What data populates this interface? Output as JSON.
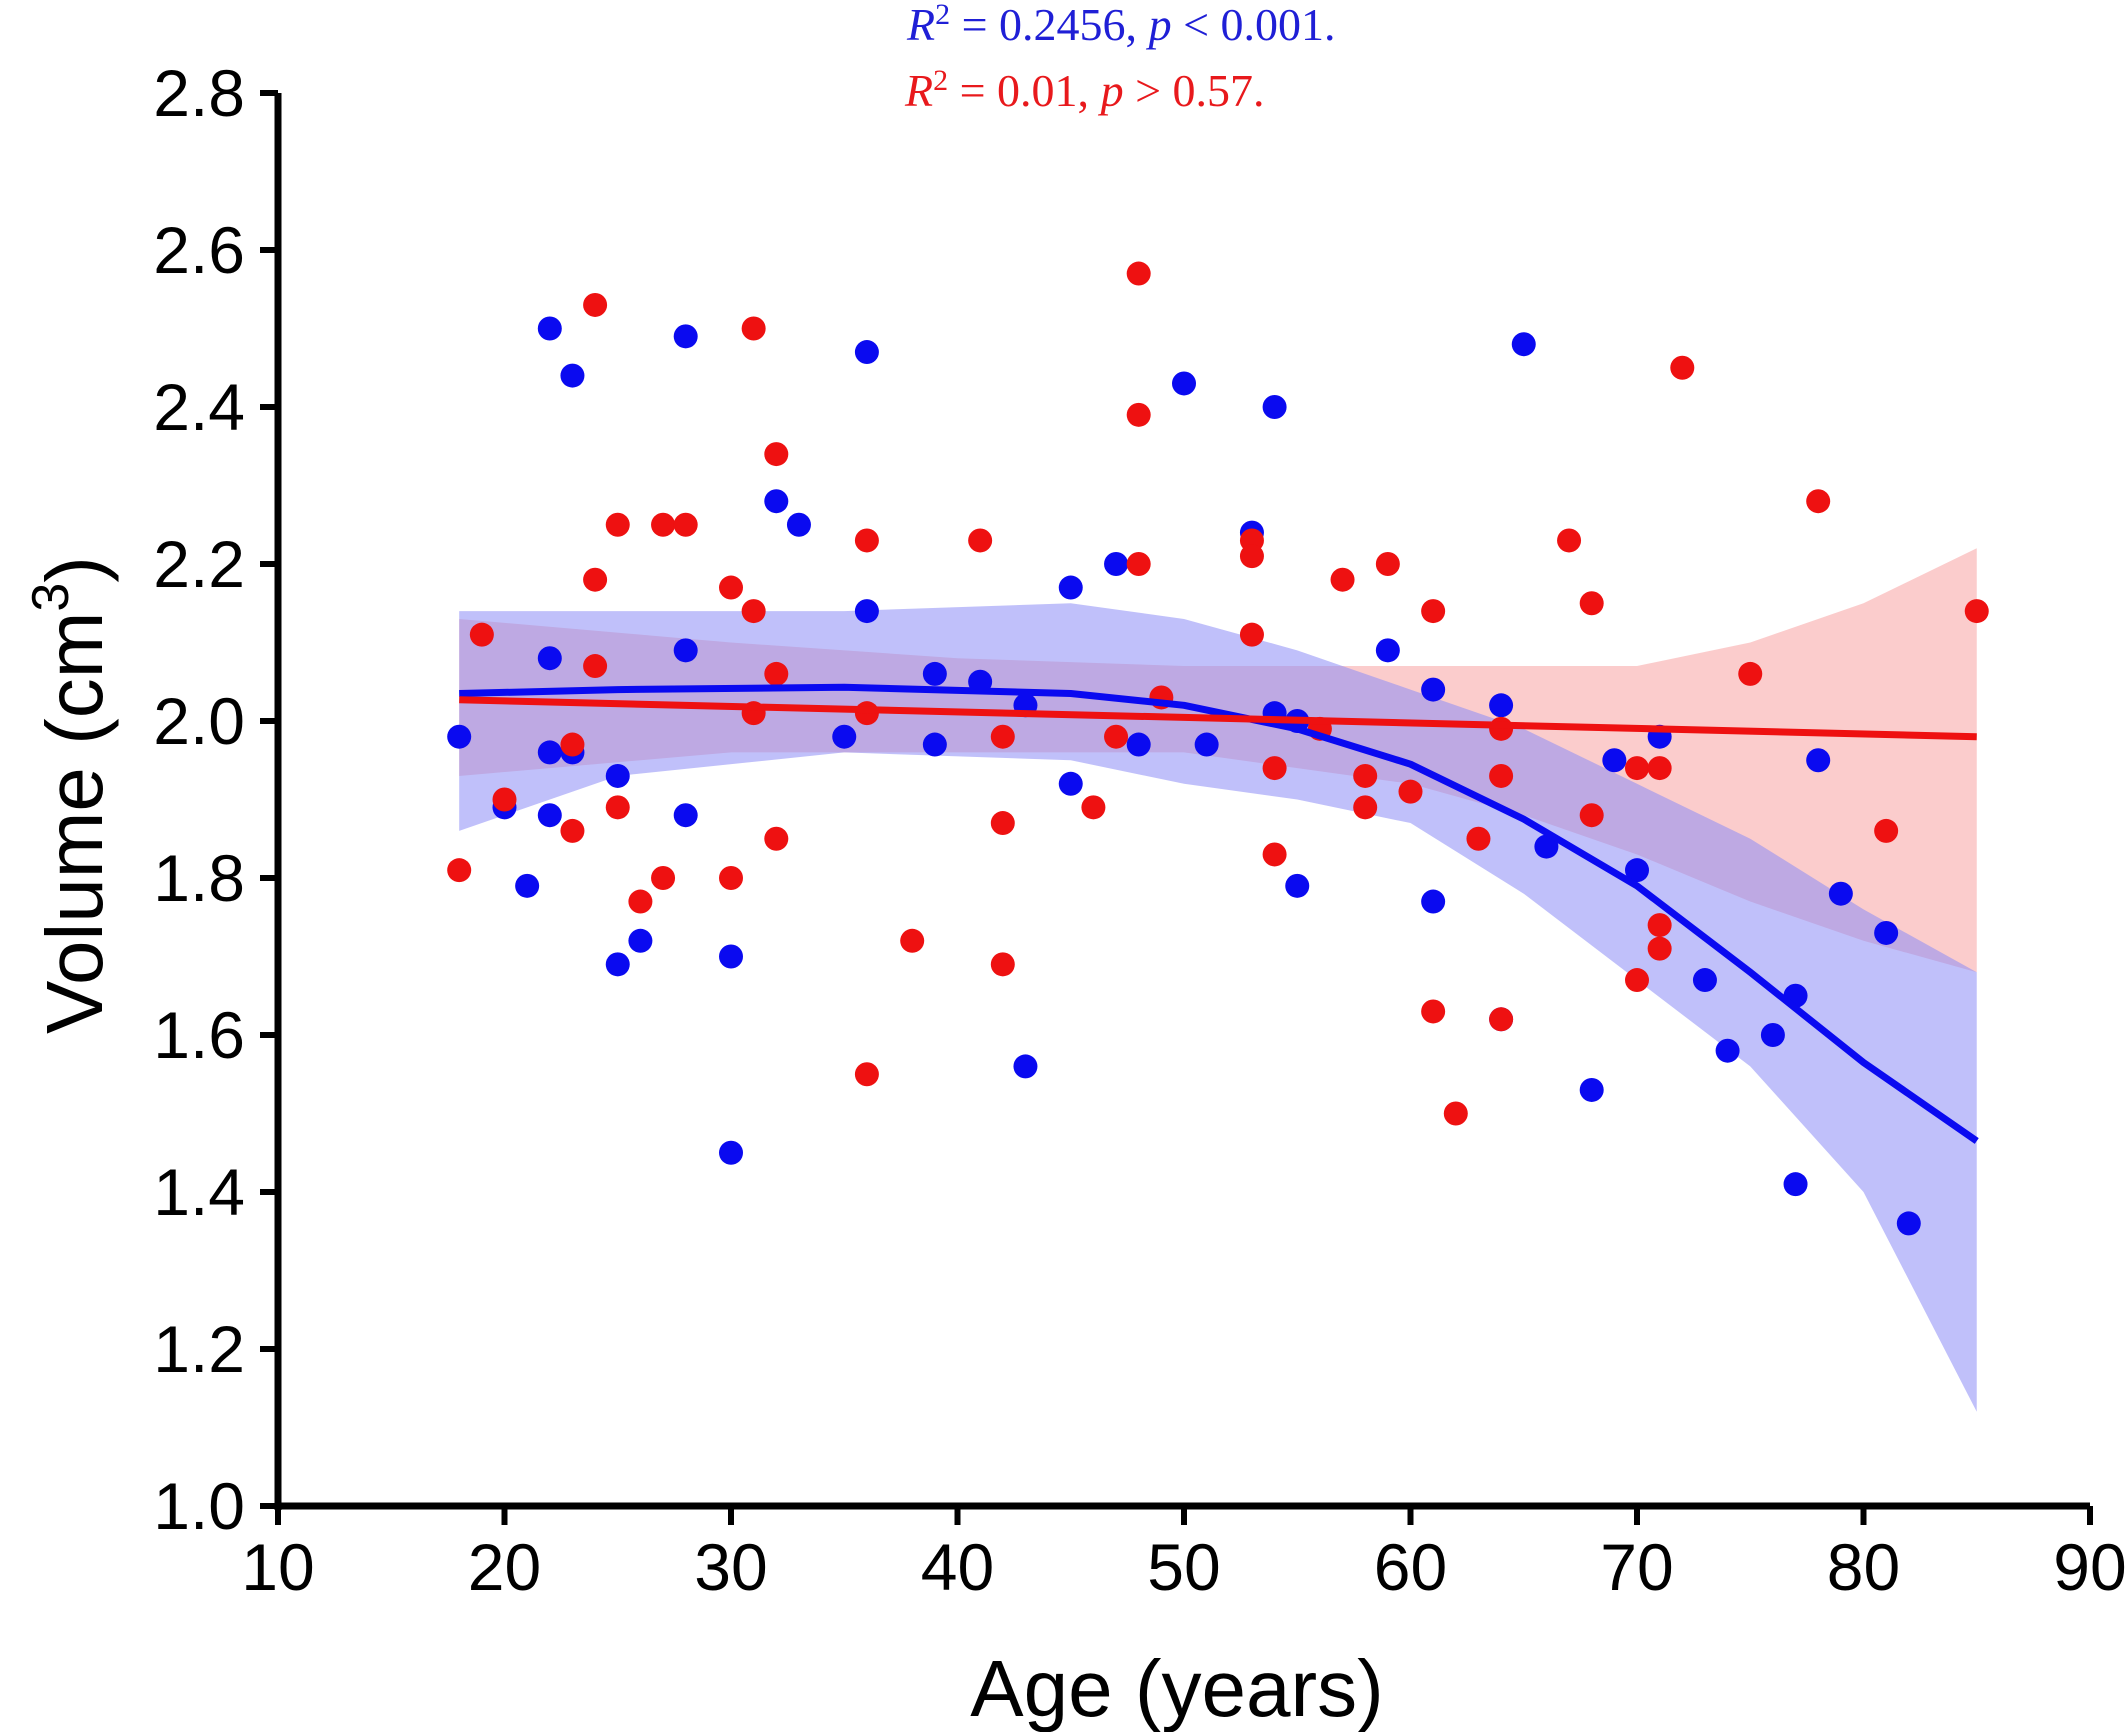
{
  "chart_data": {
    "type": "scatter",
    "title": "",
    "xlabel": "Age (years)",
    "ylabel_main": "Volume (cm",
    "ylabel_sup": "3",
    "ylabel_tail": ")",
    "xlim": [
      10,
      90
    ],
    "ylim": [
      1.0,
      2.8
    ],
    "x_ticks": [
      "10",
      "20",
      "30",
      "40",
      "50",
      "60",
      "70",
      "80",
      "90"
    ],
    "y_ticks": [
      "1.0",
      "1.2",
      "1.4",
      "1.6",
      "1.8",
      "2.0",
      "2.2",
      "2.4",
      "2.6",
      "2.8"
    ],
    "grid": false,
    "annotations": [
      {
        "r": "R",
        "sup": "2",
        "rest": " = 0.2456, ",
        "p": "p",
        "tail": " < 0.001.",
        "color": "#1f1fd6"
      },
      {
        "r": "R",
        "sup": "2",
        "rest": " = 0.01, ",
        "p": "p",
        "tail": " > 0.57.",
        "color": "#e8191c"
      }
    ],
    "series": [
      {
        "color": "#0a0af0",
        "band_color": "#8c8cf5",
        "points": [
          [
            18,
            1.98
          ],
          [
            20,
            1.89
          ],
          [
            21,
            1.79
          ],
          [
            22,
            2.5
          ],
          [
            22,
            2.08
          ],
          [
            22,
            1.96
          ],
          [
            22,
            1.88
          ],
          [
            23,
            2.44
          ],
          [
            23,
            1.96
          ],
          [
            25,
            1.93
          ],
          [
            25,
            1.69
          ],
          [
            26,
            1.72
          ],
          [
            28,
            2.49
          ],
          [
            28,
            2.09
          ],
          [
            28,
            1.88
          ],
          [
            30,
            1.7
          ],
          [
            30,
            1.45
          ],
          [
            32,
            2.28
          ],
          [
            33,
            2.25
          ],
          [
            35,
            1.98
          ],
          [
            36,
            2.47
          ],
          [
            36,
            2.14
          ],
          [
            39,
            2.06
          ],
          [
            39,
            1.97
          ],
          [
            41,
            2.05
          ],
          [
            43,
            2.02
          ],
          [
            43,
            1.56
          ],
          [
            45,
            2.17
          ],
          [
            45,
            1.92
          ],
          [
            47,
            2.2
          ],
          [
            48,
            1.97
          ],
          [
            50,
            2.43
          ],
          [
            51,
            1.97
          ],
          [
            53,
            2.24
          ],
          [
            54,
            2.4
          ],
          [
            54,
            2.01
          ],
          [
            55,
            2.0
          ],
          [
            55,
            1.79
          ],
          [
            59,
            2.09
          ],
          [
            61,
            2.04
          ],
          [
            61,
            1.77
          ],
          [
            64,
            2.02
          ],
          [
            64,
            1.62
          ],
          [
            65,
            2.48
          ],
          [
            66,
            1.84
          ],
          [
            68,
            1.53
          ],
          [
            69,
            1.95
          ],
          [
            70,
            1.81
          ],
          [
            71,
            1.98
          ],
          [
            73,
            1.67
          ],
          [
            74,
            1.58
          ],
          [
            76,
            1.6
          ],
          [
            77,
            1.65
          ],
          [
            77,
            1.41
          ],
          [
            78,
            1.95
          ],
          [
            79,
            1.78
          ],
          [
            81,
            1.73
          ],
          [
            82,
            1.36
          ]
        ],
        "fit": [
          [
            18,
            2.035
          ],
          [
            25,
            2.04
          ],
          [
            35,
            2.043
          ],
          [
            45,
            2.035
          ],
          [
            50,
            2.02
          ],
          [
            55,
            1.99
          ],
          [
            60,
            1.945
          ],
          [
            65,
            1.875
          ],
          [
            70,
            1.79
          ],
          [
            75,
            1.68
          ],
          [
            80,
            1.565
          ],
          [
            85,
            1.465
          ]
        ],
        "band_upper": [
          [
            18,
            2.14
          ],
          [
            25,
            2.14
          ],
          [
            35,
            2.14
          ],
          [
            45,
            2.15
          ],
          [
            50,
            2.13
          ],
          [
            55,
            2.09
          ],
          [
            60,
            2.04
          ],
          [
            65,
            1.99
          ],
          [
            70,
            1.92
          ],
          [
            75,
            1.85
          ],
          [
            80,
            1.76
          ],
          [
            85,
            1.68
          ]
        ],
        "band_lower": [
          [
            18,
            1.86
          ],
          [
            25,
            1.93
          ],
          [
            35,
            1.96
          ],
          [
            45,
            1.95
          ],
          [
            50,
            1.92
          ],
          [
            55,
            1.9
          ],
          [
            60,
            1.87
          ],
          [
            65,
            1.78
          ],
          [
            70,
            1.67
          ],
          [
            75,
            1.56
          ],
          [
            80,
            1.4
          ],
          [
            85,
            1.12
          ]
        ]
      },
      {
        "color": "#ee1111",
        "band_color": "#f7a3a3",
        "points": [
          [
            18,
            1.81
          ],
          [
            19,
            2.11
          ],
          [
            20,
            1.9
          ],
          [
            23,
            1.97
          ],
          [
            23,
            1.86
          ],
          [
            24,
            2.53
          ],
          [
            24,
            2.18
          ],
          [
            24,
            2.07
          ],
          [
            25,
            2.25
          ],
          [
            25,
            1.89
          ],
          [
            26,
            1.77
          ],
          [
            27,
            2.25
          ],
          [
            27,
            1.8
          ],
          [
            28,
            2.25
          ],
          [
            30,
            2.17
          ],
          [
            30,
            1.8
          ],
          [
            31,
            2.5
          ],
          [
            31,
            2.14
          ],
          [
            31,
            2.01
          ],
          [
            32,
            2.34
          ],
          [
            32,
            2.06
          ],
          [
            32,
            1.85
          ],
          [
            36,
            2.23
          ],
          [
            36,
            2.01
          ],
          [
            36,
            1.55
          ],
          [
            38,
            1.72
          ],
          [
            41,
            2.23
          ],
          [
            42,
            1.98
          ],
          [
            42,
            1.87
          ],
          [
            42,
            1.69
          ],
          [
            46,
            1.89
          ],
          [
            47,
            1.98
          ],
          [
            48,
            2.57
          ],
          [
            48,
            2.39
          ],
          [
            48,
            2.2
          ],
          [
            49,
            2.03
          ],
          [
            53,
            2.23
          ],
          [
            53,
            2.21
          ],
          [
            53,
            2.11
          ],
          [
            54,
            1.94
          ],
          [
            54,
            1.83
          ],
          [
            56,
            1.99
          ],
          [
            57,
            2.18
          ],
          [
            58,
            1.93
          ],
          [
            58,
            1.89
          ],
          [
            59,
            2.2
          ],
          [
            60,
            1.91
          ],
          [
            61,
            2.14
          ],
          [
            61,
            1.63
          ],
          [
            62,
            1.5
          ],
          [
            63,
            1.85
          ],
          [
            64,
            1.99
          ],
          [
            64,
            1.93
          ],
          [
            64,
            1.62
          ],
          [
            67,
            2.23
          ],
          [
            68,
            2.15
          ],
          [
            68,
            1.88
          ],
          [
            70,
            1.94
          ],
          [
            70,
            1.67
          ],
          [
            71,
            1.94
          ],
          [
            71,
            1.74
          ],
          [
            71,
            1.71
          ],
          [
            72,
            2.45
          ],
          [
            75,
            2.06
          ],
          [
            78,
            2.28
          ],
          [
            81,
            1.86
          ],
          [
            85,
            2.14
          ]
        ],
        "fit": [
          [
            18,
            2.027
          ],
          [
            85,
            1.98
          ]
        ],
        "band_upper": [
          [
            18,
            2.13
          ],
          [
            30,
            2.1
          ],
          [
            40,
            2.08
          ],
          [
            50,
            2.07
          ],
          [
            60,
            2.07
          ],
          [
            65,
            2.07
          ],
          [
            70,
            2.07
          ],
          [
            75,
            2.1
          ],
          [
            80,
            2.15
          ],
          [
            85,
            2.22
          ]
        ],
        "band_lower": [
          [
            18,
            1.93
          ],
          [
            30,
            1.96
          ],
          [
            40,
            1.96
          ],
          [
            50,
            1.96
          ],
          [
            55,
            1.94
          ],
          [
            60,
            1.92
          ],
          [
            65,
            1.88
          ],
          [
            70,
            1.83
          ],
          [
            75,
            1.77
          ],
          [
            80,
            1.72
          ],
          [
            85,
            1.68
          ]
        ]
      }
    ]
  }
}
